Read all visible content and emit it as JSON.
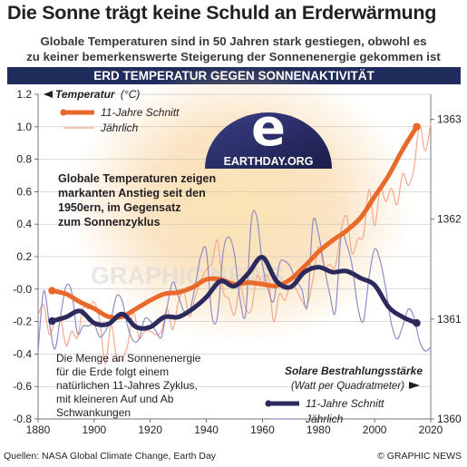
{
  "header": {
    "title": "Die Sonne trägt keine Schuld an Erderwärmung",
    "subtitle_line1": "Globale Temperaturen sind in 50 Jahren stark gestiegen, obwohl es",
    "subtitle_line2": "zu keiner bemerkenswerte Steigerung der Sonnenenergie gekommen ist",
    "banner": "ERD TEMPERATUR GEGEN SONNENAKTIVITÄT"
  },
  "legend_temp": {
    "title": "Temperatur",
    "unit": "(°C)",
    "item_avg": "11-Jahre Schnitt",
    "item_annual": "Jährlich"
  },
  "legend_solar": {
    "title": "Solare Bestrahlungsstärke",
    "unit": "(Watt per Quadratmeter)",
    "item_avg": "11-Jahre Schnitt",
    "item_annual": "Jährlich"
  },
  "annotations": {
    "temp_note": [
      "Globale Temperaturen zeigen",
      "markanten Anstieg seit den",
      "1950ern, im Gegensatz",
      "zum Sonnenzyklus"
    ],
    "solar_note": [
      "Die Menge an Sonnenenergie",
      "für die Erde folgt einem",
      "natürlichen 11-Jahres Zyklus,",
      "mit kleineren  Auf und Ab",
      "Schwankungen"
    ]
  },
  "logo": {
    "text": "EARTHDAY.ORG",
    "letter": "e"
  },
  "watermark": "GRAPHIC NEWS",
  "footer": {
    "source": "Quellen: NASA Global Climate Change, Earth Day",
    "credit": "© GRAPHIC NEWS"
  },
  "colors": {
    "temp_avg": "#e8692a",
    "temp_annual": "#f4a98c",
    "solar_avg": "#2c2a5c",
    "solar_annual": "#8e8cc4",
    "glow": "#f7c98a",
    "banner": "#1f2c5c",
    "logo_dark": "#25285c"
  },
  "chart_data": {
    "type": "line",
    "x_range": [
      1880,
      2020
    ],
    "x_ticks": [
      "1880",
      "1900",
      "1920",
      "1940",
      "1960",
      "1980",
      "2000",
      "2020"
    ],
    "y_left": {
      "label": "Temperatur (°C)",
      "range": [
        -0.8,
        1.2
      ],
      "ticks": [
        "1.2",
        "1.0",
        "0.8",
        "0.6",
        "0.4",
        "0.2",
        "-0.0",
        "-0.2",
        "-0.4",
        "-0.6",
        "-0.8"
      ]
    },
    "y_right": {
      "label": "Solare Bestrahlungsstärke (Watt per Quadratmeter)",
      "range": [
        1360,
        1363.25
      ],
      "ticks": [
        "1363",
        "1362",
        "1361",
        "1360"
      ]
    },
    "series": [
      {
        "name": "Temperatur 11-Jahre Schnitt",
        "axis": "left",
        "x": [
          1885,
          1890,
          1895,
          1900,
          1905,
          1910,
          1915,
          1920,
          1925,
          1930,
          1935,
          1940,
          1945,
          1950,
          1955,
          1960,
          1965,
          1970,
          1975,
          1980,
          1985,
          1990,
          1995,
          2000,
          2005,
          2010,
          2015
        ],
        "y": [
          -0.01,
          -0.03,
          -0.08,
          -0.12,
          -0.17,
          -0.17,
          -0.12,
          -0.07,
          -0.03,
          -0.02,
          0.01,
          0.06,
          0.06,
          0.03,
          0.04,
          0.03,
          0.02,
          0.06,
          0.14,
          0.23,
          0.3,
          0.36,
          0.44,
          0.57,
          0.7,
          0.86,
          1.0
        ]
      },
      {
        "name": "Temperatur Jährlich",
        "axis": "left",
        "x": [
          1880,
          1882,
          1884,
          1886,
          1888,
          1890,
          1892,
          1894,
          1896,
          1898,
          1900,
          1902,
          1904,
          1906,
          1908,
          1910,
          1912,
          1914,
          1916,
          1918,
          1920,
          1922,
          1924,
          1926,
          1928,
          1930,
          1932,
          1934,
          1936,
          1938,
          1940,
          1942,
          1944,
          1946,
          1948,
          1950,
          1952,
          1954,
          1956,
          1958,
          1960,
          1962,
          1964,
          1966,
          1968,
          1970,
          1972,
          1974,
          1976,
          1978,
          1980,
          1982,
          1984,
          1986,
          1988,
          1990,
          1992,
          1994,
          1996,
          1998,
          2000,
          2002,
          2004,
          2006,
          2008,
          2010,
          2012,
          2014,
          2016,
          2018,
          2020
        ],
        "y": [
          -0.16,
          -0.1,
          -0.28,
          -0.2,
          -0.18,
          -0.35,
          -0.26,
          -0.3,
          -0.12,
          -0.12,
          -0.08,
          -0.2,
          -0.46,
          -0.22,
          -0.42,
          -0.43,
          -0.34,
          -0.14,
          -0.3,
          -0.26,
          -0.26,
          -0.28,
          -0.26,
          -0.12,
          -0.25,
          -0.08,
          -0.02,
          -0.17,
          -0.05,
          0.05,
          0.12,
          0.16,
          0.3,
          -0.01,
          -0.06,
          -0.16,
          0.02,
          -0.12,
          -0.13,
          0.08,
          0.03,
          0.08,
          -0.2,
          -0.03,
          -0.07,
          0.03,
          0.0,
          -0.07,
          -0.1,
          0.06,
          0.26,
          0.14,
          0.15,
          0.14,
          0.36,
          0.45,
          0.22,
          0.31,
          0.33,
          0.61,
          0.39,
          0.62,
          0.54,
          0.62,
          0.52,
          0.71,
          0.64,
          0.74,
          1.01,
          0.85,
          1.02
        ]
      },
      {
        "name": "Solare Bestrahlungsstärke 11-Jahre Schnitt",
        "axis": "right",
        "x": [
          1885,
          1890,
          1895,
          1900,
          1905,
          1910,
          1915,
          1920,
          1925,
          1930,
          1935,
          1940,
          1945,
          1950,
          1955,
          1960,
          1965,
          1970,
          1975,
          1980,
          1985,
          1990,
          1995,
          2000,
          2005,
          2010,
          2015
        ],
        "y": [
          1360.98,
          1361.02,
          1361.08,
          1360.96,
          1360.95,
          1361.05,
          1360.92,
          1360.92,
          1361.02,
          1361.02,
          1361.1,
          1361.22,
          1361.38,
          1361.33,
          1361.46,
          1361.62,
          1361.38,
          1361.32,
          1361.47,
          1361.52,
          1361.47,
          1361.48,
          1361.41,
          1361.34,
          1361.12,
          1361.02,
          1360.96
        ]
      },
      {
        "name": "Solare Bestrahlungsstärke Jährlich",
        "axis": "right",
        "x": [
          1880,
          1882,
          1884,
          1886,
          1888,
          1890,
          1892,
          1894,
          1896,
          1898,
          1900,
          1902,
          1904,
          1906,
          1908,
          1910,
          1912,
          1914,
          1916,
          1918,
          1920,
          1922,
          1924,
          1926,
          1928,
          1930,
          1932,
          1934,
          1936,
          1938,
          1940,
          1942,
          1944,
          1946,
          1948,
          1950,
          1952,
          1954,
          1956,
          1958,
          1960,
          1962,
          1964,
          1966,
          1968,
          1970,
          1972,
          1974,
          1976,
          1978,
          1980,
          1982,
          1984,
          1986,
          1988,
          1990,
          1992,
          1994,
          1996,
          1998,
          2000,
          2002,
          2004,
          2006,
          2008,
          2010,
          2012,
          2014,
          2016,
          2018,
          2020
        ],
        "y": [
          1360.68,
          1361.28,
          1360.96,
          1360.7,
          1361.03,
          1361.33,
          1361.27,
          1360.86,
          1360.93,
          1360.93,
          1360.95,
          1360.82,
          1360.88,
          1361.0,
          1361.23,
          1361.18,
          1360.92,
          1360.78,
          1360.8,
          1361.0,
          1360.98,
          1360.88,
          1360.82,
          1361.12,
          1361.37,
          1361.23,
          1361.08,
          1361.08,
          1361.33,
          1361.63,
          1361.68,
          1361.03,
          1361.03,
          1361.67,
          1361.82,
          1361.65,
          1361.2,
          1361.05,
          1361.98,
          1362.02,
          1361.55,
          1361.3,
          1361.18,
          1361.55,
          1361.58,
          1361.52,
          1361.38,
          1361.3,
          1361.13,
          1361.97,
          1361.85,
          1361.53,
          1361.25,
          1361.07,
          1361.82,
          1361.75,
          1361.53,
          1361.12,
          1360.98,
          1361.42,
          1361.7,
          1361.58,
          1361.3,
          1360.95,
          1360.8,
          1360.93,
          1361.1,
          1361.02,
          1360.78,
          1360.68,
          1360.72
        ]
      }
    ]
  }
}
